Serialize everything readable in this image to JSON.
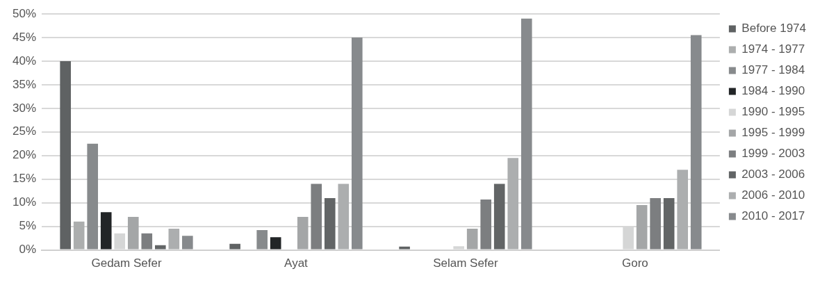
{
  "chart_data": {
    "type": "bar",
    "categories": [
      "Gedam Sefer",
      "Ayat",
      "Selam Sefer",
      "Goro"
    ],
    "series": [
      {
        "name": "Before 1974",
        "color": "#5f6263",
        "values": [
          40,
          1.3,
          0.7,
          0
        ]
      },
      {
        "name": "1974 - 1977",
        "color": "#acaeae",
        "values": [
          6,
          0,
          0,
          0
        ]
      },
      {
        "name": "1977 - 1984",
        "color": "#878a8c",
        "values": [
          22.5,
          4.2,
          0,
          0
        ]
      },
      {
        "name": "1984 - 1990",
        "color": "#222527",
        "values": [
          8,
          2.7,
          0,
          0
        ]
      },
      {
        "name": "1990 - 1995",
        "color": "#d5d6d6",
        "values": [
          3.5,
          0,
          0.8,
          5
        ]
      },
      {
        "name": "1995 - 1999",
        "color": "#a4a6a7",
        "values": [
          7,
          7,
          4.5,
          9.5
        ]
      },
      {
        "name": "1999 - 2003",
        "color": "#7c7e80",
        "values": [
          3.5,
          14,
          10.7,
          11
        ]
      },
      {
        "name": "2003 - 2006",
        "color": "#626566",
        "values": [
          1,
          11,
          14,
          11
        ]
      },
      {
        "name": "2006 - 2010",
        "color": "#acaeaf",
        "values": [
          4.5,
          14,
          19.5,
          17
        ]
      },
      {
        "name": "2010 - 2017",
        "color": "#878a8d",
        "values": [
          3,
          45,
          49,
          45.5
        ]
      }
    ],
    "ylim": [
      0,
      50
    ],
    "yticks": [
      {
        "value": 0,
        "label": "0%"
      },
      {
        "value": 5,
        "label": "5%"
      },
      {
        "value": 10,
        "label": "10%"
      },
      {
        "value": 15,
        "label": "15%"
      },
      {
        "value": 20,
        "label": "20%"
      },
      {
        "value": 25,
        "label": "25%"
      },
      {
        "value": 30,
        "label": "30%"
      },
      {
        "value": 35,
        "label": "35%"
      },
      {
        "value": 40,
        "label": "40%"
      },
      {
        "value": 45,
        "label": "45%"
      },
      {
        "value": 50,
        "label": "50%"
      }
    ],
    "grid": "y",
    "legend": "right"
  }
}
